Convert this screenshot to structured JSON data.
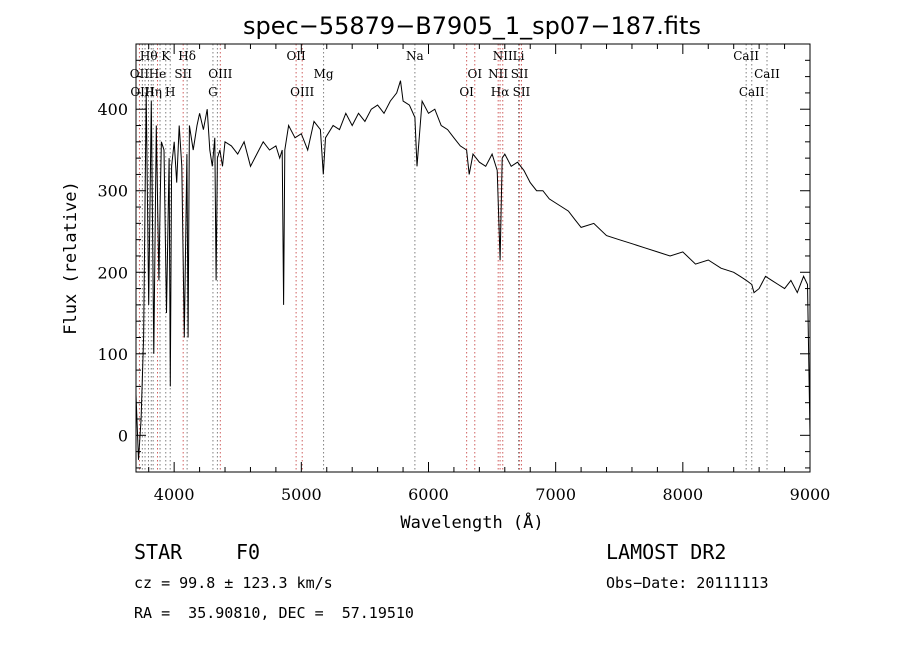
{
  "chart_data": {
    "type": "line",
    "title": "spec−55879−B7905_1_sp07−187.fits",
    "xlabel": "Wavelength (Å)",
    "ylabel": "Flux (relative)",
    "xlim": [
      3700,
      9000
    ],
    "ylim": [
      -45,
      480
    ],
    "xticks": [
      4000,
      5000,
      6000,
      7000,
      8000,
      9000
    ],
    "yticks": [
      0,
      100,
      200,
      300,
      400
    ],
    "grid": false,
    "series": [
      {
        "color": "#000000",
        "x": [
          3700,
          3720,
          3740,
          3760,
          3780,
          3800,
          3820,
          3840,
          3860,
          3880,
          3890,
          3900,
          3920,
          3940,
          3960,
          3970,
          3980,
          4000,
          4020,
          4040,
          4060,
          4080,
          4100,
          4110,
          4120,
          4150,
          4180,
          4200,
          4230,
          4260,
          4280,
          4300,
          4320,
          4330,
          4340,
          4360,
          4380,
          4400,
          4450,
          4500,
          4550,
          4600,
          4650,
          4700,
          4750,
          4800,
          4830,
          4850,
          4861,
          4870,
          4900,
          4950,
          5000,
          5050,
          5100,
          5150,
          5173,
          5190,
          5250,
          5300,
          5350,
          5400,
          5450,
          5500,
          5550,
          5600,
          5650,
          5700,
          5750,
          5780,
          5800,
          5850,
          5893,
          5910,
          5950,
          6000,
          6050,
          6100,
          6150,
          6200,
          6250,
          6300,
          6320,
          6350,
          6400,
          6450,
          6500,
          6540,
          6563,
          6580,
          6600,
          6650,
          6700,
          6750,
          6800,
          6850,
          6900,
          6950,
          7000,
          7050,
          7100,
          7150,
          7200,
          7300,
          7400,
          7500,
          7600,
          7700,
          7800,
          7900,
          8000,
          8100,
          8200,
          8300,
          8400,
          8450,
          8500,
          8542,
          8560,
          8600,
          8650,
          8700,
          8750,
          8800,
          8850,
          8900,
          8950,
          8980,
          9000
        ],
        "y": [
          50,
          -30,
          20,
          120,
          420,
          160,
          410,
          100,
          380,
          190,
          290,
          360,
          350,
          150,
          340,
          60,
          330,
          360,
          310,
          380,
          330,
          120,
          345,
          120,
          380,
          350,
          380,
          395,
          375,
          400,
          350,
          330,
          365,
          190,
          340,
          350,
          330,
          360,
          355,
          345,
          360,
          330,
          345,
          360,
          350,
          355,
          340,
          350,
          160,
          350,
          380,
          365,
          370,
          350,
          385,
          375,
          320,
          365,
          380,
          375,
          395,
          380,
          395,
          385,
          400,
          405,
          395,
          410,
          420,
          435,
          410,
          405,
          390,
          330,
          410,
          395,
          400,
          380,
          375,
          365,
          355,
          350,
          320,
          345,
          335,
          330,
          345,
          325,
          215,
          340,
          345,
          330,
          335,
          325,
          310,
          300,
          300,
          290,
          285,
          280,
          275,
          265,
          255,
          260,
          245,
          240,
          235,
          230,
          225,
          220,
          225,
          210,
          215,
          205,
          200,
          195,
          190,
          185,
          175,
          180,
          195,
          190,
          185,
          180,
          190,
          175,
          195,
          185,
          0
        ]
      }
    ],
    "lines": [
      {
        "w": 3727,
        "color": "#d06060"
      },
      {
        "w": 3750,
        "color": "#808080"
      },
      {
        "w": 3771,
        "color": "#808080"
      },
      {
        "w": 3798,
        "color": "#808080"
      },
      {
        "w": 3820,
        "color": "#808080"
      },
      {
        "w": 3835,
        "color": "#808080"
      },
      {
        "w": 3869,
        "color": "#d06060"
      },
      {
        "w": 3889,
        "color": "#808080"
      },
      {
        "w": 3934,
        "color": "#808080"
      },
      {
        "w": 3969,
        "color": "#808080"
      },
      {
        "w": 4071,
        "color": "#d06060"
      },
      {
        "w": 4102,
        "color": "#808080"
      },
      {
        "w": 4305,
        "color": "#808080"
      },
      {
        "w": 4340,
        "color": "#808080"
      },
      {
        "w": 4363,
        "color": "#d06060"
      },
      {
        "w": 4959,
        "color": "#d06060"
      },
      {
        "w": 5007,
        "color": "#d06060"
      },
      {
        "w": 5175,
        "color": "#808080"
      },
      {
        "w": 5893,
        "color": "#808080"
      },
      {
        "w": 6300,
        "color": "#d06060"
      },
      {
        "w": 6364,
        "color": "#d06060"
      },
      {
        "w": 6548,
        "color": "#d06060"
      },
      {
        "w": 6563,
        "color": "#d06060"
      },
      {
        "w": 6584,
        "color": "#d06060"
      },
      {
        "w": 6708,
        "color": "#808080"
      },
      {
        "w": 6716,
        "color": "#d06060"
      },
      {
        "w": 6731,
        "color": "#d06060"
      },
      {
        "w": 8498,
        "color": "#808080"
      },
      {
        "w": 8542,
        "color": "#808080"
      },
      {
        "w": 8662,
        "color": "#808080"
      }
    ],
    "annotations": [
      {
        "text": "Hθ",
        "w": 3800,
        "row": 1
      },
      {
        "text": "K",
        "w": 3934,
        "row": 1
      },
      {
        "text": "Hδ",
        "w": 4102,
        "row": 1
      },
      {
        "text": "OII",
        "w": 4959,
        "row": 1
      },
      {
        "text": "Na",
        "w": 5893,
        "row": 1
      },
      {
        "text": "NII",
        "w": 6584,
        "row": 1
      },
      {
        "text": "Li",
        "w": 6708,
        "row": 1
      },
      {
        "text": "CaII",
        "w": 8498,
        "row": 1
      },
      {
        "text": "OII",
        "w": 3727,
        "row": 2
      },
      {
        "text": "He",
        "w": 3869,
        "row": 2
      },
      {
        "text": "SII",
        "w": 4071,
        "row": 2
      },
      {
        "text": "OIII",
        "w": 4363,
        "row": 2
      },
      {
        "text": "Mg",
        "w": 5175,
        "row": 2
      },
      {
        "text": "OI",
        "w": 6364,
        "row": 2
      },
      {
        "text": "NII",
        "w": 6548,
        "row": 2
      },
      {
        "text": "SII",
        "w": 6716,
        "row": 2
      },
      {
        "text": "CaII",
        "w": 8662,
        "row": 2
      },
      {
        "text": "OIII",
        "w": 3750,
        "row": 3
      },
      {
        "text": "Hη",
        "w": 3835,
        "row": 3
      },
      {
        "text": "H",
        "w": 3969,
        "row": 3
      },
      {
        "text": "G",
        "w": 4305,
        "row": 3
      },
      {
        "text": "OIII",
        "w": 5007,
        "row": 3
      },
      {
        "text": "OI",
        "w": 6300,
        "row": 3
      },
      {
        "text": "Hα",
        "w": 6563,
        "row": 3
      },
      {
        "text": "SII",
        "w": 6731,
        "row": 3
      },
      {
        "text": "CaII",
        "w": 8542,
        "row": 3
      }
    ]
  },
  "info": {
    "object_class": "STAR",
    "subclass": "F0",
    "redshift": "cz = 99.8 ± 123.3 km/s",
    "coords": "RA =  35.90810, DEC =  57.19510",
    "survey": "LAMOST DR2",
    "obs_date": "Obs−Date: 20111113"
  }
}
